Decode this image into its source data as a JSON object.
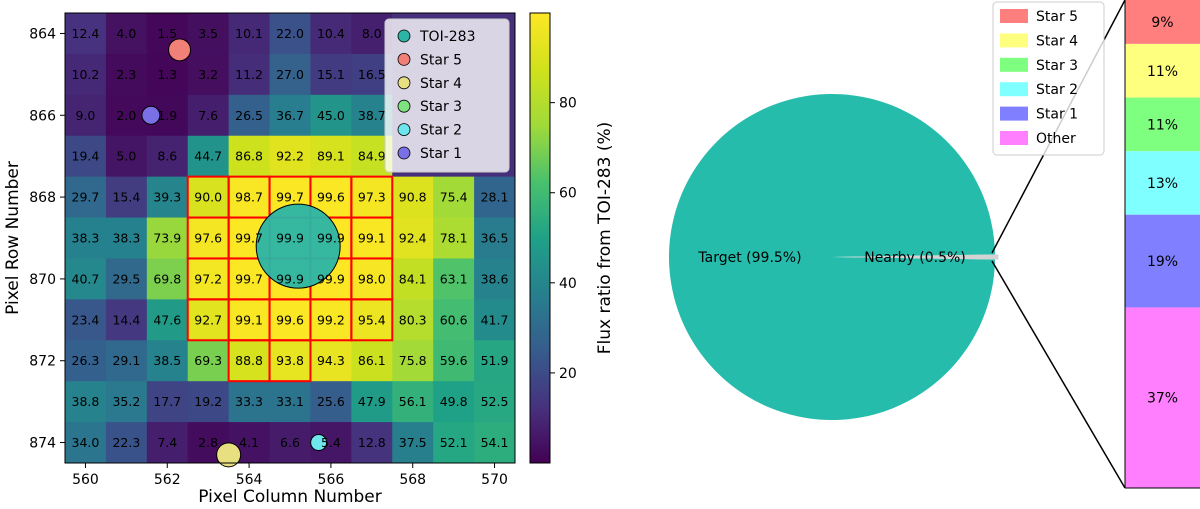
{
  "chart_data": [
    {
      "type": "heatmap",
      "xlabel": "Pixel Column Number",
      "ylabel": "Pixel Row Number",
      "x_ticks": [
        "560",
        "562",
        "564",
        "566",
        "568",
        "570"
      ],
      "y_ticks": [
        "864",
        "866",
        "868",
        "870",
        "872",
        "874"
      ],
      "x_range": [
        559.5,
        570.5
      ],
      "y_range": [
        863.5,
        874.5
      ],
      "colorbar": {
        "label": "Flux ratio from TOI-283 (%)",
        "ticks": [
          "20",
          "40",
          "60",
          "80"
        ],
        "range": [
          0,
          99.9
        ],
        "colormap": "viridis"
      },
      "columns": [
        560,
        561,
        562,
        563,
        564,
        565,
        566,
        567,
        568,
        569,
        570
      ],
      "rows": [
        864,
        865,
        866,
        867,
        868,
        869,
        870,
        871,
        872,
        873,
        874
      ],
      "values": [
        [
          "12.4",
          "4.0",
          "1.5",
          "3.5",
          "10.1",
          "22.0",
          "10.4",
          "8.0",
          "",
          "",
          ""
        ],
        [
          "10.2",
          "2.3",
          "1.3",
          "3.2",
          "11.2",
          "27.0",
          "15.1",
          "16.5",
          "",
          "",
          ""
        ],
        [
          "9.0",
          "2.0",
          "1.9",
          "7.6",
          "26.5",
          "36.7",
          "45.0",
          "38.7",
          "",
          "",
          ""
        ],
        [
          "19.4",
          "5.0",
          "8.6",
          "44.7",
          "86.8",
          "92.2",
          "89.1",
          "84.9",
          "",
          "",
          ""
        ],
        [
          "29.7",
          "15.4",
          "39.3",
          "90.0",
          "98.7",
          "99.7",
          "99.6",
          "97.3",
          "90.8",
          "75.4",
          "28.1"
        ],
        [
          "38.3",
          "38.3",
          "73.9",
          "97.6",
          "99.7",
          "99.9",
          "99.9",
          "99.1",
          "92.4",
          "78.1",
          "36.5"
        ],
        [
          "40.7",
          "29.5",
          "69.8",
          "97.2",
          "99.7",
          "99.9",
          "99.9",
          "98.0",
          "84.1",
          "63.1",
          "38.6"
        ],
        [
          "23.4",
          "14.4",
          "47.6",
          "92.7",
          "99.1",
          "99.6",
          "99.2",
          "95.4",
          "80.3",
          "60.6",
          "41.7"
        ],
        [
          "26.3",
          "29.1",
          "38.5",
          "69.3",
          "88.8",
          "93.8",
          "94.3",
          "86.1",
          "75.8",
          "59.6",
          "51.9"
        ],
        [
          "38.8",
          "35.2",
          "17.7",
          "19.2",
          "33.3",
          "33.1",
          "25.6",
          "47.9",
          "56.1",
          "49.8",
          "52.5"
        ],
        [
          "34.0",
          "22.3",
          "7.4",
          "2.8",
          "4.1",
          "6.6",
          "5.4",
          "12.8",
          "37.5",
          "52.1",
          "54.1"
        ]
      ],
      "aperture": [
        [
          868,
          563
        ],
        [
          868,
          564
        ],
        [
          868,
          565
        ],
        [
          868,
          566
        ],
        [
          868,
          567
        ],
        [
          869,
          563
        ],
        [
          869,
          564
        ],
        [
          869,
          565
        ],
        [
          869,
          566
        ],
        [
          869,
          567
        ],
        [
          870,
          563
        ],
        [
          870,
          564
        ],
        [
          870,
          565
        ],
        [
          870,
          566
        ],
        [
          870,
          567
        ],
        [
          871,
          563
        ],
        [
          871,
          564
        ],
        [
          871,
          565
        ],
        [
          871,
          566
        ],
        [
          871,
          567
        ],
        [
          872,
          564
        ],
        [
          872,
          565
        ]
      ],
      "aperture_color": "#ff0000",
      "stars": [
        {
          "name": "TOI-283",
          "x": 565.2,
          "y": 869.2,
          "size": 42,
          "color": "#2bb5a6"
        },
        {
          "name": "Star 5",
          "x": 562.3,
          "y": 864.4,
          "size": 11,
          "color": "#f08078"
        },
        {
          "name": "Star 4",
          "x": 563.5,
          "y": 874.3,
          "size": 12,
          "color": "#e8e080"
        },
        {
          "name": "Star 3",
          "x": null,
          "y": null,
          "size": 0,
          "color": "#7ee27e"
        },
        {
          "name": "Star 2",
          "x": 565.7,
          "y": 874.0,
          "size": 8,
          "color": "#6ee6ee"
        },
        {
          "name": "Star 1",
          "x": 561.6,
          "y": 866.0,
          "size": 9,
          "color": "#7a70e6"
        }
      ],
      "legend": {
        "placement": "top-right",
        "entries": [
          "TOI-283",
          "Star 5",
          "Star 4",
          "Star 3",
          "Star 2",
          "Star 1"
        ]
      }
    },
    {
      "type": "pie",
      "slices": [
        {
          "label": "Target (99.5%)",
          "value": 99.5,
          "color": "#26bcac"
        },
        {
          "label": "Nearby (0.5%)",
          "value": 0.5,
          "color": "#d3d3d3"
        }
      ]
    },
    {
      "type": "bar",
      "stacked": true,
      "segments": [
        {
          "name": "Star 5",
          "value": 9,
          "label": "9%",
          "color": "#ff7f7f"
        },
        {
          "name": "Star 4",
          "value": 11,
          "label": "11%",
          "color": "#ffff7f"
        },
        {
          "name": "Star 3",
          "value": 11,
          "label": "11%",
          "color": "#7fff7f"
        },
        {
          "name": "Star 2",
          "value": 13,
          "label": "13%",
          "color": "#7fffff"
        },
        {
          "name": "Star 1",
          "value": 19,
          "label": "19%",
          "color": "#7f7fff"
        },
        {
          "name": "Other",
          "value": 37,
          "label": "37%",
          "color": "#ff7fff"
        }
      ],
      "legend": {
        "placement": "left",
        "entries": [
          "Star 5",
          "Star 4",
          "Star 3",
          "Star 2",
          "Star 1",
          "Other"
        ]
      }
    }
  ]
}
